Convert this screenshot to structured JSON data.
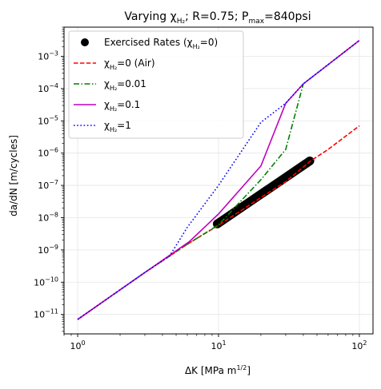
{
  "chart_data": {
    "type": "line",
    "title": {
      "pre": "Varying ",
      "chi": "χ",
      "chi_sub": "H₂",
      "mid": "; R=0.75; P",
      "p_sub": "max",
      "post": "=840psi"
    },
    "xlabel": {
      "main": "ΔK [MPa m",
      "sup": "1/2",
      "end": "]"
    },
    "ylabel": "da/dN [m/cycles]",
    "xscale": "log",
    "yscale": "log",
    "xlim": [
      0.8,
      125
    ],
    "ylim": [
      2.5e-12,
      0.008
    ],
    "x_ticks": [
      {
        "value": 1,
        "base": "10",
        "exp": "0"
      },
      {
        "value": 10,
        "base": "10",
        "exp": "1"
      },
      {
        "value": 100,
        "base": "10",
        "exp": "2"
      }
    ],
    "y_ticks": [
      {
        "value": 1e-11,
        "base": "10",
        "exp": "−11"
      },
      {
        "value": 1e-10,
        "base": "10",
        "exp": "−10"
      },
      {
        "value": 1e-09,
        "base": "10",
        "exp": "−9"
      },
      {
        "value": 1e-08,
        "base": "10",
        "exp": "−8"
      },
      {
        "value": 1e-07,
        "base": "10",
        "exp": "−7"
      },
      {
        "value": 1e-06,
        "base": "10",
        "exp": "−6"
      },
      {
        "value": 1e-05,
        "base": "10",
        "exp": "−5"
      },
      {
        "value": 0.0001,
        "base": "10",
        "exp": "−4"
      },
      {
        "value": 0.001,
        "base": "10",
        "exp": "−3"
      }
    ],
    "grid": true,
    "legend_position": "top-left",
    "series": [
      {
        "name": "Exercised Rates",
        "name_suffix": " (χ",
        "name_sub": "H₂",
        "name_end": "=0)",
        "kind": "scatter",
        "color": "#000000",
        "x_range": [
          9.8,
          44.5
        ],
        "y_range": [
          6.4e-09,
          5.7e-07
        ],
        "count": 80
      },
      {
        "name": "χ",
        "name_sub": "H₂",
        "name_end": "=0 (Air)",
        "kind": "line",
        "dash": "dashed",
        "color": "#ff0000",
        "x": [
          1,
          3,
          6,
          10,
          20,
          30,
          45,
          60,
          100
        ],
        "y": [
          7e-12,
          2e-10,
          1.5e-09,
          5.8e-09,
          4.2e-08,
          1.3e-07,
          5.7e-07,
          1.3e-06,
          7e-06
        ]
      },
      {
        "name": "χ",
        "name_sub": "H₂",
        "name_end": "=0.01",
        "kind": "line",
        "dash": "dashdot",
        "color": "#008000",
        "x": [
          1,
          3,
          6,
          10,
          20,
          30,
          40,
          100
        ],
        "y": [
          7e-12,
          2e-10,
          1.5e-09,
          6e-09,
          1.5e-07,
          1.3e-06,
          0.00014,
          0.0031
        ]
      },
      {
        "name": "χ",
        "name_sub": "H₂",
        "name_end": "=0.1",
        "kind": "line",
        "dash": "solid",
        "color": "#bf00bf",
        "x": [
          1,
          3,
          6.2,
          10,
          20,
          30,
          40,
          100
        ],
        "y": [
          7e-12,
          2e-10,
          1.8e-09,
          1.3e-08,
          4e-07,
          3.5e-05,
          0.00014,
          0.0031
        ]
      },
      {
        "name": "χ",
        "name_sub": "H₂",
        "name_end": "=1",
        "kind": "line",
        "dash": "dotted",
        "color": "#0000ff",
        "x": [
          1,
          3,
          4.5,
          6,
          10,
          20,
          30,
          40,
          100
        ],
        "y": [
          7e-12,
          2e-10,
          6.5e-10,
          5e-09,
          1e-07,
          9e-06,
          3.5e-05,
          0.00014,
          0.0031
        ]
      }
    ]
  }
}
